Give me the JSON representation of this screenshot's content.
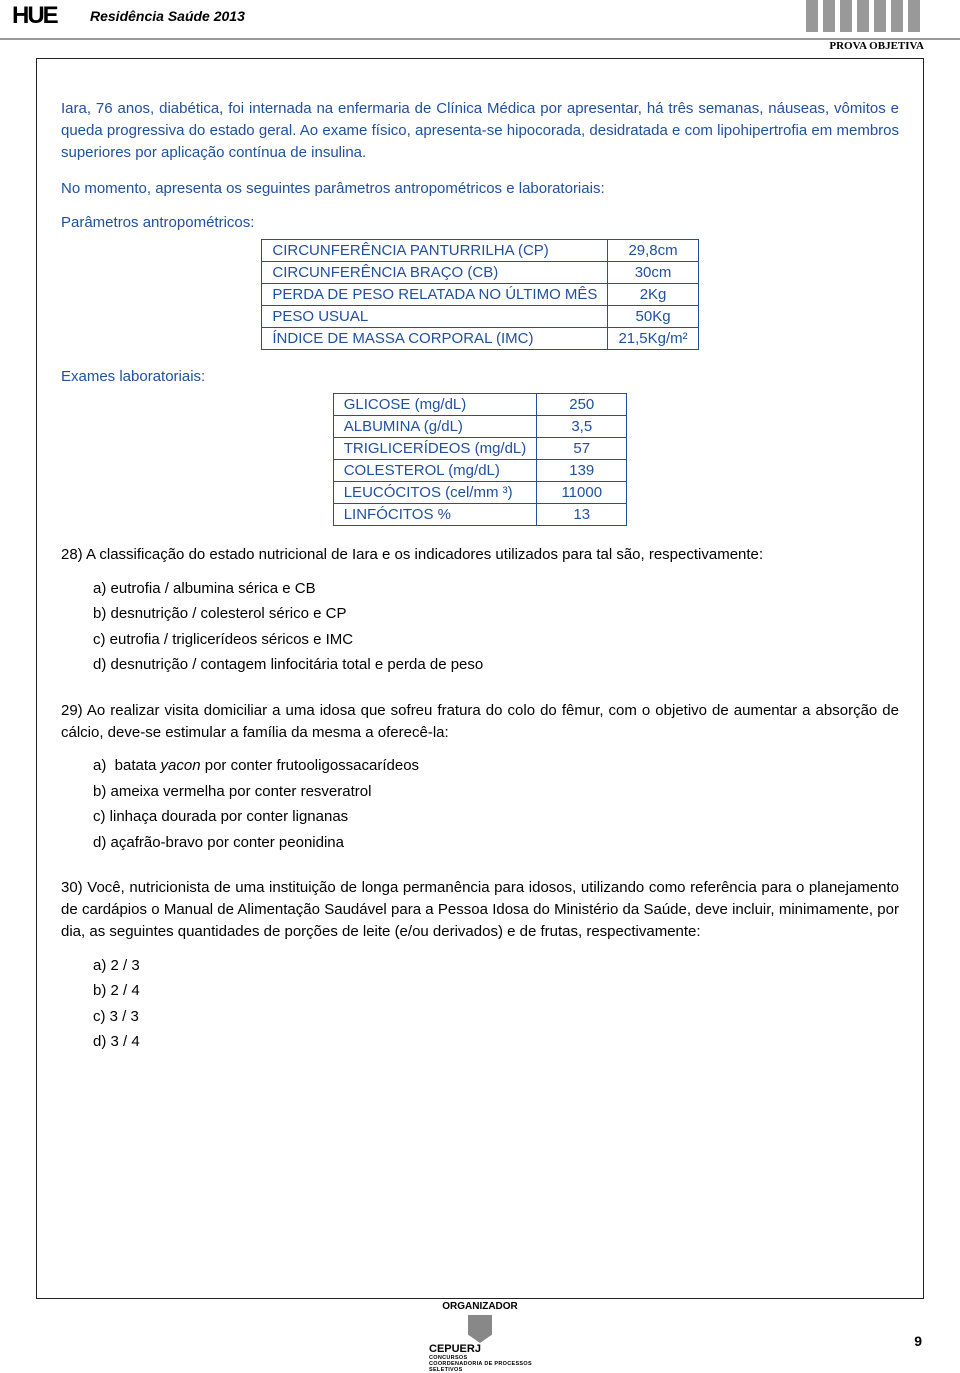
{
  "header": {
    "logo_text": "HUE",
    "title": "Residência Saúde 2013",
    "exam_type": "PROVA OBJETIVA",
    "bar_color": "#999999",
    "bar_count": 7
  },
  "case": {
    "paragraph1": "Iara, 76 anos, diabética, foi internada na enfermaria de Clínica Médica por apresentar, há três semanas, náuseas, vômitos e queda progressiva do estado geral. Ao exame físico, apresenta-se hipocorada, desidratada e com lipohipertrofia em membros superiores por aplicação contínua de insulina.",
    "paragraph2": "No momento, apresenta os seguintes parâmetros antropométricos e laboratoriais:",
    "anthro_label": "Parâmetros antropométricos:",
    "lab_label": "Exames laboratoriais:",
    "text_color": "#2050a0"
  },
  "tables": {
    "anthro": {
      "border_color": "#2050a0",
      "rows": [
        {
          "param": "CIRCUNFERÊNCIA PANTURRILHA (CP)",
          "value": "29,8cm"
        },
        {
          "param": "CIRCUNFERÊNCIA BRAÇO (CB)",
          "value": "30cm"
        },
        {
          "param": "PERDA DE PESO RELATADA NO ÚLTIMO MÊS",
          "value": "2Kg"
        },
        {
          "param": "PESO USUAL",
          "value": "50Kg"
        },
        {
          "param": "ÍNDICE DE MASSA CORPORAL (IMC)",
          "value": "21,5Kg/m²"
        }
      ]
    },
    "lab": {
      "border_color": "#2050a0",
      "rows": [
        {
          "param": "GLICOSE (mg/dL)",
          "value": "250"
        },
        {
          "param": "ALBUMINA (g/dL)",
          "value": "3,5"
        },
        {
          "param": "TRIGLICERÍDEOS (mg/dL)",
          "value": "57"
        },
        {
          "param": "COLESTEROL (mg/dL)",
          "value": "139"
        },
        {
          "param": "LEUCÓCITOS (cel/mm ³)",
          "value": "11000"
        },
        {
          "param": "LINFÓCITOS %",
          "value": "13"
        }
      ]
    }
  },
  "questions": {
    "q28": {
      "text": "28) A classificação do estado nutricional de Iara e os indicadores utilizados para tal são, respectivamente:",
      "choices": {
        "a": "a)  eutrofia / albumina sérica e CB",
        "b": "b)  desnutrição / colesterol sérico e CP",
        "c": "c)  eutrofia / triglicerídeos séricos e IMC",
        "d": "d)  desnutrição / contagem linfocitária total e perda de peso"
      }
    },
    "q29": {
      "text": "29) Ao realizar visita domiciliar a uma idosa que sofreu fratura do colo do fêmur, com o objetivo de aumentar a absorção de cálcio, deve-se estimular a família da mesma a oferecê-la:",
      "choices": {
        "a": "a)  batata yacon por conter frutooligossacarídeos",
        "b": "b)  ameixa vermelha por conter resveratrol",
        "c": "c)  linhaça dourada por conter lignanas",
        "d": "d)  açafrão-bravo por conter peonidina"
      }
    },
    "q30": {
      "text": "30) Você, nutricionista de uma instituição de longa permanência para idosos, utilizando como referência para o planejamento de cardápios o Manual de Alimentação Saudável para a Pessoa Idosa do Ministério da Saúde, deve incluir, minimamente, por dia, as seguintes quantidades de porções de leite (e/ou derivados) e de frutas, respectivamente:",
      "choices": {
        "a": "a)  2 / 3",
        "b": "b)  2 / 4",
        "c": "c)  3 / 3",
        "d": "d)  3 / 4"
      }
    }
  },
  "footer": {
    "organizer_label": "ORGANIZADOR",
    "logo_big": "CEPUERJ",
    "logo_small1": "CONCURSOS",
    "logo_small2": "COORDENADORIA DE PROCESSOS SELETIVOS",
    "page_number": "9"
  },
  "styling": {
    "body_width": 960,
    "body_height": 1359,
    "case_text_color": "#2050a0",
    "body_font": "Arial",
    "body_font_size": 15,
    "border_color": "#222222",
    "background_color": "#ffffff"
  }
}
